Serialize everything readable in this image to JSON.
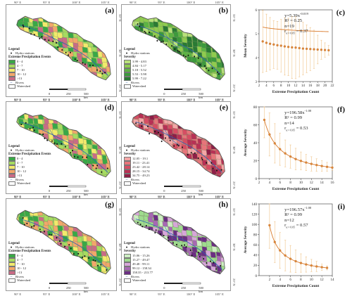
{
  "map_axes": {
    "lon_labels": [
      "90° E",
      "95° E",
      "100° E",
      "105° E"
    ],
    "lat_labels": [
      "35° N",
      "30° N",
      "25° N"
    ]
  },
  "legend_common": {
    "title": "Legend",
    "hydro_stations": "Hydro stations",
    "rivers": "Rivers",
    "watershed": "Watershed",
    "scale_labels": [
      "0",
      "250",
      "500 km"
    ]
  },
  "panels": [
    {
      "label": "(a)",
      "kind": "map",
      "legend_type": "events",
      "legend_subtitle": "Extreme Precipitation Events",
      "classes": [
        "0 - 4",
        "4 - 7",
        "7 - 10",
        "10 - 12",
        ">13"
      ],
      "colors": [
        "#39a846",
        "#a6dc60",
        "#f2ea6c",
        "#f2a76a",
        "#c96b86"
      ]
    },
    {
      "label": "(b)",
      "kind": "map",
      "legend_type": "severity",
      "legend_subtitle": "Severity",
      "classes": [
        "3.99 - 4.83",
        "4.84 - 5.17",
        "5.18 - 5.52",
        "5.53 - 5.98",
        "5.99 - 7.22"
      ],
      "colors": [
        "#b9e27b",
        "#8fcc4e",
        "#5db443",
        "#3c9a3c",
        "#2a7a33"
      ]
    },
    {
      "label": "(c)",
      "kind": "plot",
      "equation": {
        "y": "y=5.39x",
        "exp": "-0.019",
        "r2": "R² = 0.25",
        "n": "n=19",
        "r": "r",
        "rsub": "α = 0.05",
        "rval": " = 0.37"
      },
      "xlabel": "Extreme Precipitation Count",
      "ylabel": "Mean Severity"
    },
    {
      "label": "(d)",
      "kind": "map",
      "legend_type": "events",
      "legend_subtitle": "Extreme Precipitation Events",
      "classes": [
        "0 - 4",
        "4 - 7",
        "7 - 10",
        "10 - 12",
        ">13"
      ],
      "colors": [
        "#39a846",
        "#a6dc60",
        "#f2ea6c",
        "#f2a76a",
        "#c96b86"
      ]
    },
    {
      "label": "(e)",
      "kind": "map",
      "legend_type": "severity",
      "legend_subtitle": "Severity",
      "classes": [
        "12.05 - 19.1",
        "19.11 - 23.41",
        "23.42 - 28.14",
        "28.15 - 34.74",
        "34.75 - 49.23"
      ],
      "colors": [
        "#f4a6a6",
        "#e8747a",
        "#d64d63",
        "#b83055",
        "#8e1f47"
      ]
    },
    {
      "label": "(f)",
      "kind": "plot",
      "equation": {
        "y": "y=196.58x",
        "exp": "-1.00",
        "r2": "R² = 0.99",
        "n": "n=14",
        "r": "r",
        "rsub": "α = 0.05",
        "rval": " = 0.53"
      },
      "xlabel": "Extreme Precipitation Count",
      "ylabel": "Average Severity"
    },
    {
      "label": "(g)",
      "kind": "map",
      "legend_type": "events",
      "legend_subtitle": "Extreme Precipitation Events",
      "classes": [
        "0 - 4",
        "4 - 7",
        "7 - 10",
        "10 - 12",
        ">13"
      ],
      "colors": [
        "#39a846",
        "#a6dc60",
        "#f2ea6c",
        "#f2a76a",
        "#c96b86"
      ]
    },
    {
      "label": "(h)",
      "kind": "map",
      "legend_type": "severity",
      "legend_subtitle": "Severity",
      "classes": [
        "15.06 - 15.26",
        "15.27 - 49.47",
        "49.48 - 99.11",
        "99.12 - 158.34",
        "158.35 - 213.77"
      ],
      "colors": [
        "#cdeec2",
        "#9fdc8e",
        "#d7a6d9",
        "#a768b3",
        "#6b2e83"
      ]
    },
    {
      "label": "(i)",
      "kind": "plot",
      "equation": {
        "y": "y=196.57x",
        "exp": "-1.00",
        "r2": "R² = 0.99",
        "n": "n=12",
        "r": "r",
        "rsub": "α = 0.05",
        "rval": " = 0.57"
      },
      "xlabel": "Extreme Precipitation Count",
      "ylabel": "Average Severity"
    }
  ],
  "chart_data": [
    {
      "type": "scatter",
      "xlabel": "Extreme Precipitation Count",
      "ylabel": "Mean Severity",
      "xlim": [
        2,
        22
      ],
      "ylim": [
        3,
        6
      ],
      "xticks": [
        2,
        4,
        6,
        8,
        10,
        12,
        14,
        16,
        18,
        20,
        22
      ],
      "yticks": [
        3,
        4,
        5,
        6
      ],
      "x": [
        3,
        4,
        5,
        6,
        7,
        8,
        9,
        10,
        11,
        12,
        13,
        14,
        15,
        16,
        17,
        18,
        19,
        20,
        21
      ],
      "y": [
        4.68,
        4.62,
        4.58,
        4.55,
        4.52,
        4.5,
        4.47,
        4.45,
        4.43,
        4.42,
        4.4,
        4.38,
        4.37,
        4.36,
        4.35,
        4.34,
        4.33,
        4.32,
        4.31
      ],
      "err": [
        1.3,
        1.2,
        1.1,
        1.0,
        1.0,
        1.1,
        1.2,
        1.2,
        1.3,
        1.3,
        1.2,
        1.1,
        1.0,
        0.9,
        0.8,
        0.6,
        0.4,
        0.3,
        0.2
      ],
      "fit": {
        "a": 5.39,
        "b": -0.019
      }
    },
    {
      "type": "scatter",
      "xlabel": "Extreme Precipitation Count",
      "ylabel": "Average Severity",
      "xlim": [
        2,
        16
      ],
      "ylim": [
        0,
        80
      ],
      "xticks": [
        2,
        4,
        6,
        8,
        10,
        12,
        14,
        16
      ],
      "yticks": [
        0,
        20,
        40,
        60,
        80
      ],
      "x": [
        3,
        4,
        5,
        6,
        7,
        8,
        9,
        10,
        11,
        12,
        13,
        14,
        15,
        16
      ],
      "y": [
        65.5,
        49.2,
        39.3,
        32.8,
        28.1,
        24.6,
        21.8,
        19.7,
        17.9,
        16.4,
        15.1,
        14.0,
        13.1,
        12.3
      ],
      "err": [
        20,
        24,
        22,
        18,
        15,
        13,
        12,
        10,
        9,
        8,
        7,
        6,
        5,
        3
      ],
      "fit": {
        "a": 196.58,
        "b": -1.0
      }
    },
    {
      "type": "scatter",
      "xlabel": "Extreme Precipitation Count",
      "ylabel": "Average Severity",
      "xlim": [
        0,
        14
      ],
      "ylim": [
        0,
        140
      ],
      "xticks": [
        2,
        4,
        6,
        8,
        10,
        12,
        14
      ],
      "yticks": [
        0,
        20,
        40,
        60,
        80,
        100,
        120,
        140
      ],
      "x": [
        2,
        3,
        4,
        5,
        6,
        7,
        8,
        9,
        10,
        11,
        12,
        13
      ],
      "y": [
        98.3,
        65.5,
        49.1,
        39.3,
        32.8,
        28.1,
        24.6,
        21.8,
        19.7,
        17.9,
        16.4,
        15.1
      ],
      "err": [
        45,
        40,
        35,
        30,
        26,
        22,
        18,
        15,
        12,
        10,
        6,
        4
      ],
      "fit": {
        "a": 196.57,
        "b": -1.0
      }
    }
  ]
}
